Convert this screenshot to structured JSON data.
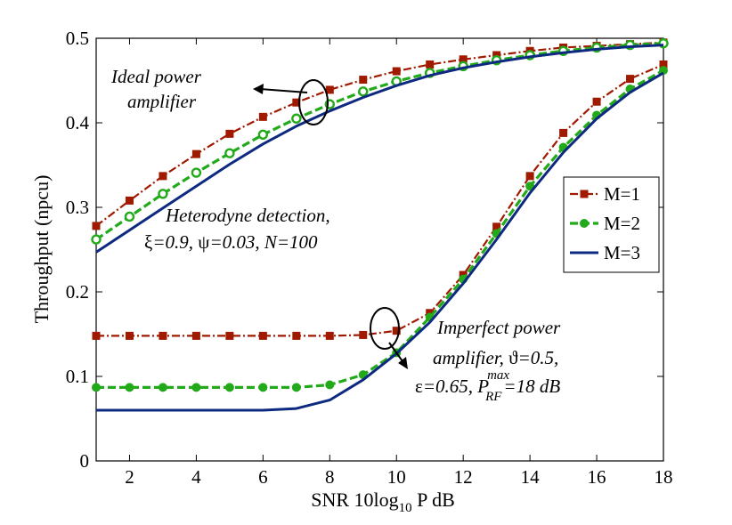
{
  "chart_data": {
    "type": "line",
    "title": "",
    "xlabel": {
      "main": "SNR 10log",
      "sub": "10",
      "tail": " P dB"
    },
    "ylabel": "Throughput (npcu)",
    "xlim": [
      1,
      18
    ],
    "ylim": [
      0,
      0.5
    ],
    "xticks": [
      2,
      4,
      6,
      8,
      10,
      12,
      14,
      16,
      18
    ],
    "yticks": [
      0,
      0.1,
      0.2,
      0.3,
      0.4,
      0.5
    ],
    "xtick_labels": [
      "2",
      "4",
      "6",
      "8",
      "10",
      "12",
      "14",
      "16",
      "18"
    ],
    "ytick_labels": [
      "0",
      "0.1",
      "0.2",
      "0.3",
      "0.4",
      "0.5"
    ],
    "x": [
      1,
      2,
      3,
      4,
      5,
      6,
      7,
      8,
      9,
      10,
      11,
      12,
      13,
      14,
      15,
      16,
      17,
      18
    ],
    "series": [
      {
        "name": "M=1",
        "group": "ideal",
        "color": "#A01A00",
        "dash": "dashdot",
        "marker": "square",
        "values": [
          0.278,
          0.308,
          0.337,
          0.363,
          0.387,
          0.407,
          0.424,
          0.439,
          0.451,
          0.461,
          0.469,
          0.475,
          0.48,
          0.485,
          0.489,
          0.491,
          0.493,
          0.495
        ]
      },
      {
        "name": "M=2",
        "group": "ideal",
        "color": "#22AA1A",
        "dash": "dashed",
        "marker": "circle-open",
        "values": [
          0.262,
          0.289,
          0.316,
          0.341,
          0.364,
          0.386,
          0.405,
          0.422,
          0.437,
          0.449,
          0.459,
          0.467,
          0.474,
          0.48,
          0.485,
          0.489,
          0.492,
          0.494
        ]
      },
      {
        "name": "M=3",
        "group": "ideal",
        "color": "#0E2A80",
        "dash": "solid",
        "marker": "none",
        "values": [
          0.247,
          0.273,
          0.299,
          0.325,
          0.351,
          0.375,
          0.396,
          0.414,
          0.43,
          0.444,
          0.456,
          0.465,
          0.472,
          0.478,
          0.483,
          0.487,
          0.49,
          0.492
        ]
      },
      {
        "name": "M=1",
        "group": "imperfect",
        "color": "#A01A00",
        "dash": "dashdot",
        "marker": "square",
        "values": [
          0.148,
          0.148,
          0.148,
          0.148,
          0.148,
          0.148,
          0.148,
          0.148,
          0.149,
          0.154,
          0.175,
          0.22,
          0.277,
          0.337,
          0.388,
          0.425,
          0.452,
          0.469
        ]
      },
      {
        "name": "M=2",
        "group": "imperfect",
        "color": "#22AA1A",
        "dash": "dashed",
        "marker": "circle-filled",
        "values": [
          0.087,
          0.087,
          0.087,
          0.087,
          0.087,
          0.087,
          0.087,
          0.09,
          0.102,
          0.128,
          0.17,
          0.215,
          0.269,
          0.325,
          0.371,
          0.409,
          0.44,
          0.462
        ]
      },
      {
        "name": "M=3",
        "group": "imperfect",
        "color": "#0E2A80",
        "dash": "solid",
        "marker": "none",
        "values": [
          0.06,
          0.06,
          0.06,
          0.06,
          0.06,
          0.06,
          0.062,
          0.072,
          0.096,
          0.127,
          0.164,
          0.21,
          0.262,
          0.317,
          0.365,
          0.405,
          0.436,
          0.459
        ]
      }
    ],
    "legend": {
      "placement": "center-right",
      "entries": [
        {
          "label": "M=1",
          "color": "#A01A00",
          "dash": "dashdot",
          "marker": "square"
        },
        {
          "label": "M=2",
          "color": "#22AA1A",
          "dash": "dashed",
          "marker": "circle-filled"
        },
        {
          "label": "M=3",
          "color": "#0E2A80",
          "dash": "solid",
          "marker": "none"
        }
      ]
    },
    "annotations": {
      "ideal_line1": "Ideal power",
      "ideal_line2": "amplifier",
      "hetero_line1": "Heterodyne detection,",
      "hetero_xi": "ξ",
      "hetero_xi_val": "=0.9, ",
      "hetero_psi": "ψ",
      "hetero_rest": "=0.03, N=100",
      "imperfect_line1": "Imperfect power",
      "imperfect_line2a": "amplifier, ",
      "imperfect_theta": "ϑ",
      "imperfect_line2b": "=0.5,",
      "imperfect_eps": "ε",
      "imperfect_line3a": "=0.65, P",
      "imperfect_sup": "max",
      "imperfect_sub": "RF",
      "imperfect_line3b": "=18 dB"
    }
  }
}
